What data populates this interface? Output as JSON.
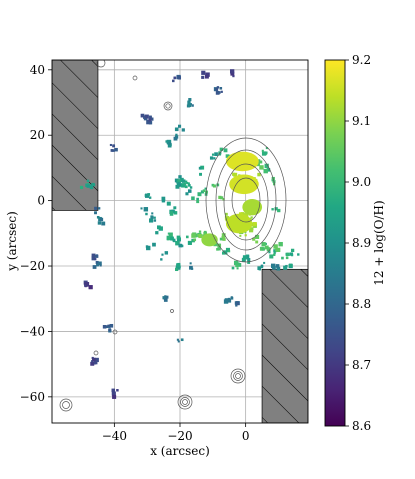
{
  "chart_data": {
    "type": "heatmap",
    "title": "",
    "xlabel": "x (arcsec)",
    "ylabel": "y (arcsec)",
    "xlim": [
      -59,
      19
    ],
    "ylim": [
      -68,
      43
    ],
    "xticks": [
      -40,
      -20,
      0
    ],
    "yticks": [
      40,
      20,
      0,
      -20,
      -40,
      -60
    ],
    "x_tick_labels": [
      "−40",
      "−20",
      "0"
    ],
    "y_tick_labels": [
      "40",
      "20",
      "0",
      "−20",
      "−40",
      "−60"
    ],
    "grid": true,
    "colorbar": {
      "label": "12 + log(O/H)",
      "min": 8.6,
      "max": 9.2,
      "ticks": [
        8.6,
        8.7,
        8.8,
        8.9,
        9.0,
        9.1,
        9.2
      ],
      "tick_labels": [
        "8.6",
        "8.7",
        "8.8",
        "8.9",
        "9.0",
        "9.1",
        "9.2"
      ],
      "colormap": "viridis"
    },
    "masked_regions": [
      {
        "x0": -59,
        "x1": -45,
        "y0": -3,
        "y1": 43
      },
      {
        "x0": 5,
        "x1": 19,
        "y0": -68,
        "y1": -21
      }
    ],
    "pixels": [
      [
        -30.5,
        26,
        8.75
      ],
      [
        -30,
        24.5,
        8.78
      ],
      [
        -29.5,
        25.5,
        8.74
      ],
      [
        -20,
        22,
        8.88
      ],
      [
        -21,
        37,
        8.75
      ],
      [
        -12,
        38,
        8.72
      ],
      [
        -8,
        34,
        8.78
      ],
      [
        -4,
        39,
        8.72
      ],
      [
        -17,
        30,
        8.85
      ],
      [
        -24,
        17,
        8.9
      ],
      [
        -40,
        16,
        8.75
      ],
      [
        -21,
        20,
        8.86
      ],
      [
        -20.5,
        6.5,
        8.92
      ],
      [
        -19.5,
        5.5,
        8.95
      ],
      [
        -20,
        4.5,
        8.9
      ],
      [
        -18,
        5,
        8.97
      ],
      [
        -17,
        3,
        8.92
      ],
      [
        -14,
        9,
        8.95
      ],
      [
        -10,
        14,
        8.93
      ],
      [
        -7,
        15,
        9.0
      ],
      [
        -5,
        13,
        9.02
      ],
      [
        -24,
        0,
        8.92
      ],
      [
        -22,
        -3,
        8.95
      ],
      [
        -28,
        -5,
        8.9
      ],
      [
        -26,
        -9,
        8.94
      ],
      [
        -23,
        -11,
        8.97
      ],
      [
        -21,
        -12,
        8.95
      ],
      [
        -19,
        -13,
        8.92
      ],
      [
        -17,
        -12,
        8.98
      ],
      [
        -15,
        -11,
        9.03
      ],
      [
        -13,
        -10,
        9.06
      ],
      [
        -11,
        -12,
        9.1
      ],
      [
        -9,
        -14,
        9.02
      ],
      [
        -7,
        -11,
        9.05
      ],
      [
        -6,
        -16,
        8.98
      ],
      [
        -3,
        -8,
        9.1
      ],
      [
        -2,
        -5,
        9.15
      ],
      [
        -5,
        -5,
        9.12
      ],
      [
        1,
        -5,
        9.13
      ],
      [
        2,
        -8,
        9.12
      ],
      [
        -1,
        -10,
        9.1
      ],
      [
        3,
        -12,
        9.05
      ],
      [
        6,
        -14,
        9.02
      ],
      [
        8,
        -16,
        8.98
      ],
      [
        10,
        -14,
        9.03
      ],
      [
        12,
        -17,
        9.0
      ],
      [
        13,
        -20,
        8.95
      ],
      [
        15,
        -16,
        8.97
      ],
      [
        9,
        -21,
        8.85
      ],
      [
        5,
        -20,
        8.9
      ],
      [
        0,
        -18,
        8.95
      ],
      [
        -3,
        -20,
        9.0
      ],
      [
        -17,
        -20,
        8.85
      ],
      [
        -20,
        -20,
        8.95
      ],
      [
        -25,
        -17,
        8.92
      ],
      [
        -29,
        -14,
        8.88
      ],
      [
        -31,
        -3,
        8.9
      ],
      [
        -30,
        2,
        8.92
      ],
      [
        -15,
        0,
        8.98
      ],
      [
        -13,
        3,
        9.0
      ],
      [
        -9,
        5,
        9.02
      ],
      [
        -7,
        1,
        9.05
      ],
      [
        -3,
        7,
        9.12
      ],
      [
        3,
        7,
        9.12
      ],
      [
        4,
        11,
        9.05
      ],
      [
        6,
        15,
        9.0
      ],
      [
        8,
        6,
        9.02
      ],
      [
        9,
        -2,
        8.98
      ],
      [
        7,
        10,
        9.0
      ],
      [
        -49,
        5,
        8.95
      ],
      [
        -47,
        4,
        8.92
      ],
      [
        -45,
        -3,
        8.8
      ],
      [
        -44,
        -6,
        8.85
      ],
      [
        -46,
        -17,
        8.75
      ],
      [
        -45,
        -20,
        8.8
      ],
      [
        -48,
        -26,
        8.7
      ],
      [
        -42,
        -39,
        8.78
      ],
      [
        -46,
        -49,
        8.72
      ],
      [
        -40,
        -59,
        8.7
      ],
      [
        -20,
        -43,
        8.85
      ],
      [
        -24,
        -30,
        8.82
      ],
      [
        -5,
        -30,
        8.85
      ],
      [
        -3,
        -32,
        8.8
      ]
    ],
    "pixel_blobs_high": [
      {
        "cx": -1,
        "cy": 12,
        "rx": 5,
        "ry": 3,
        "value": 9.17
      },
      {
        "cx": -0.5,
        "cy": 5,
        "rx": 4.5,
        "ry": 3,
        "value": 9.16
      },
      {
        "cx": -2,
        "cy": -7,
        "rx": 4,
        "ry": 3,
        "value": 9.14
      },
      {
        "cx": 2,
        "cy": -2,
        "rx": 3,
        "ry": 2.5,
        "value": 9.12
      },
      {
        "cx": -11,
        "cy": -12,
        "rx": 2.5,
        "ry": 2,
        "value": 9.1
      }
    ]
  }
}
